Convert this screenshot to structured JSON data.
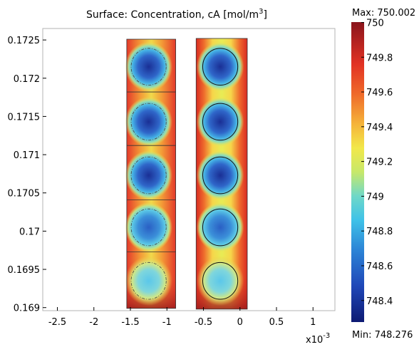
{
  "chart_data": {
    "type": "heatmap",
    "title": "Surface: Concentration, cA [mol/m",
    "title_sup": "3",
    "title_end": "]",
    "xlim": [
      -2.7,
      1.3
    ],
    "ylim": [
      0.16896,
      0.17265
    ],
    "x_ticks": [
      {
        "value": -2.5,
        "label": "-2.5"
      },
      {
        "value": -2.0,
        "label": "-2"
      },
      {
        "value": -1.5,
        "label": "-1.5"
      },
      {
        "value": -1.0,
        "label": "-1"
      },
      {
        "value": -0.5,
        "label": "-0.5"
      },
      {
        "value": 0.0,
        "label": "0"
      },
      {
        "value": 0.5,
        "label": "0.5"
      },
      {
        "value": 1.0,
        "label": "1"
      }
    ],
    "x_multiplier_base": "x10",
    "x_multiplier_exp": "-3",
    "y_ticks": [
      {
        "value": 0.1725,
        "label": "0.1725"
      },
      {
        "value": 0.172,
        "label": "0.172"
      },
      {
        "value": 0.1715,
        "label": "0.1715"
      },
      {
        "value": 0.171,
        "label": "0.171"
      },
      {
        "value": 0.1705,
        "label": "0.1705"
      },
      {
        "value": 0.17,
        "label": "0.17"
      },
      {
        "value": 0.1695,
        "label": "0.1695"
      },
      {
        "value": 0.169,
        "label": "0.169"
      }
    ],
    "domains": [
      {
        "x": [
          -1.55,
          -0.88
        ],
        "y": [
          0.16899,
          0.17251
        ],
        "cell_dividers_y": [
          0.17182,
          0.17112,
          0.17041,
          0.16973
        ],
        "dashed_circles": true
      },
      {
        "x": [
          -0.6,
          0.1
        ],
        "y": [
          0.16898,
          0.17252
        ],
        "cell_dividers_y": [],
        "dashed_circles": false
      }
    ],
    "particle_centers_y": [
      0.17215,
      0.17143,
      0.17073,
      0.17005,
      0.16935
    ],
    "particle_center_x": [
      -1.25,
      -0.27
    ],
    "particle_radius": 0.24,
    "colorbar": {
      "max_text": "Max: 750.002",
      "min_text": "Min: 748.276",
      "min": 748.276,
      "max": 750.002,
      "ticks": [
        {
          "value": 750.0,
          "label": "750"
        },
        {
          "value": 749.8,
          "label": "749.8"
        },
        {
          "value": 749.6,
          "label": "749.6"
        },
        {
          "value": 749.4,
          "label": "749.4"
        },
        {
          "value": 749.2,
          "label": "749.2"
        },
        {
          "value": 749.0,
          "label": "749"
        },
        {
          "value": 748.8,
          "label": "748.8"
        },
        {
          "value": 748.6,
          "label": "748.6"
        },
        {
          "value": 748.4,
          "label": "748.4"
        }
      ],
      "colormap": "jet"
    }
  }
}
